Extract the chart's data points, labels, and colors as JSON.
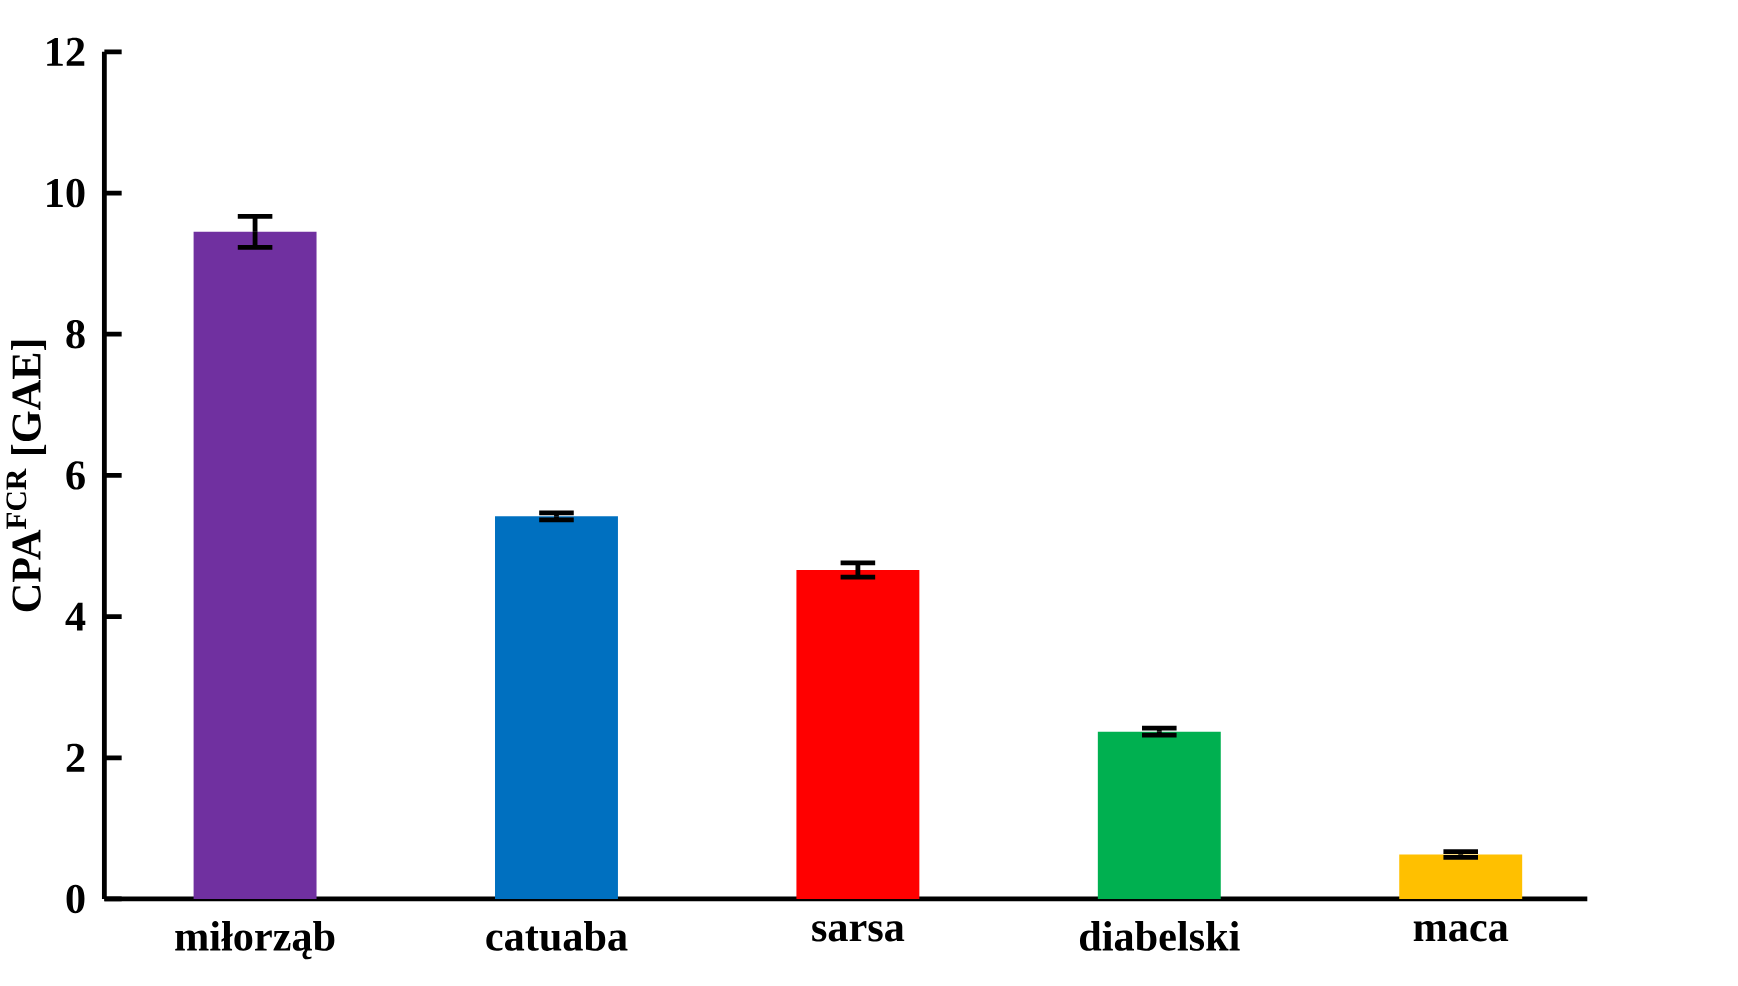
{
  "chart_data": {
    "type": "bar",
    "ylabel": "CPA$^{FCR}$ [GAE]",
    "categories": [
      "miłorząb",
      "catuaba",
      "sarsa",
      "diabelski",
      "maca"
    ],
    "values": [
      9.45,
      5.42,
      4.66,
      2.37,
      0.63
    ],
    "errors": [
      0.22,
      0.05,
      0.1,
      0.05,
      0.04
    ],
    "colors": [
      "#7030a0",
      "#0070c0",
      "#ff0000",
      "#00b050",
      "#ffc000"
    ],
    "ylim": [
      0,
      12
    ],
    "yticks": [
      0,
      2,
      4,
      6,
      8,
      10,
      12
    ]
  }
}
